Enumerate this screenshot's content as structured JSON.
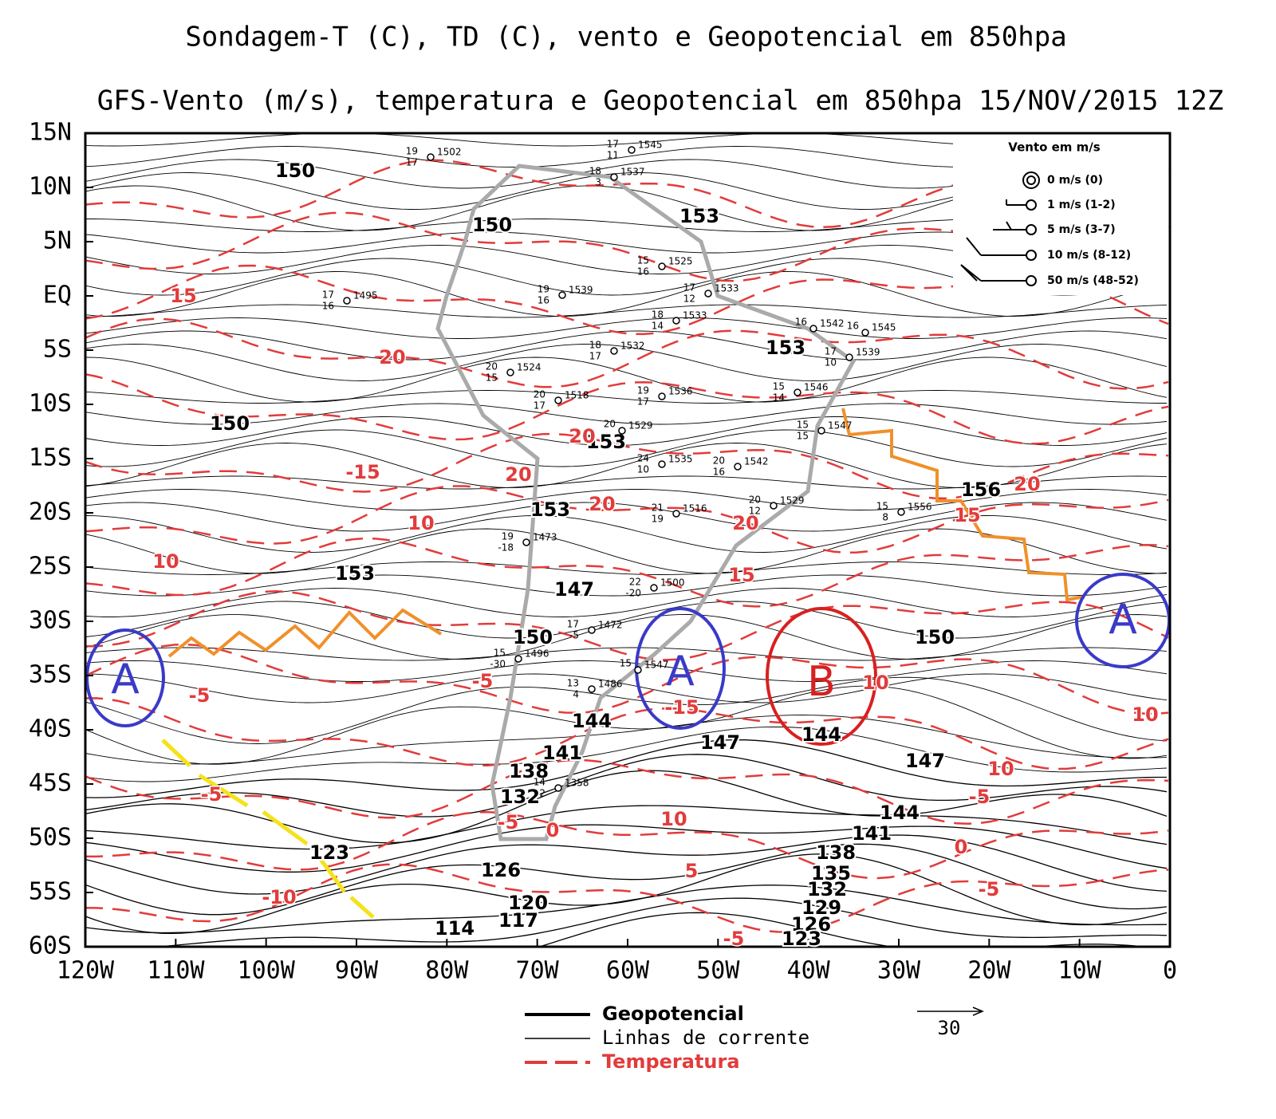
{
  "header": {
    "title": "Sondagem-T (C), TD (C), vento e Geopotencial em 850hpa",
    "subtitle": "GFS-Vento (m/s), temperatura e Geopotencial em 850hpa 15/NOV/2015 12Z"
  },
  "axes": {
    "lat_labels": [
      "15N",
      "10N",
      "5N",
      "EQ",
      "5S",
      "10S",
      "15S",
      "20S",
      "25S",
      "30S",
      "35S",
      "40S",
      "45S",
      "50S",
      "55S",
      "60S"
    ],
    "lon_labels": [
      "120W",
      "110W",
      "100W",
      "90W",
      "80W",
      "70W",
      "60W",
      "50W",
      "40W",
      "30W",
      "20W",
      "10W",
      "0"
    ]
  },
  "geopotential_labels": [
    "150",
    "153",
    "150",
    "150",
    "153",
    "153",
    "153",
    "147",
    "150",
    "144",
    "147",
    "141",
    "138",
    "132",
    "126",
    "123",
    "120",
    "117",
    "114",
    "144",
    "147",
    "150",
    "156",
    "153",
    "144",
    "141",
    "138",
    "135",
    "132",
    "129",
    "126",
    "123"
  ],
  "temperature_labels": [
    "15",
    "20",
    "-15",
    "10",
    "10",
    "20",
    "20",
    "20",
    "20",
    "15",
    "-5",
    "-5",
    "-15",
    "10",
    "10",
    "10",
    "-5",
    "20",
    "15",
    "-5",
    "10",
    "0",
    "-5",
    "0",
    "-5",
    "5",
    "-10",
    "-5"
  ],
  "stations": [
    [
      "19",
      "17",
      "1502"
    ],
    [
      "17",
      "11",
      "1545"
    ],
    [
      "18",
      "3",
      "1537"
    ],
    [
      "17",
      "16",
      "1495"
    ],
    [
      "19",
      "16",
      "1539"
    ],
    [
      "15",
      "16",
      "1525"
    ],
    [
      "17",
      "12",
      "1533"
    ],
    [
      "18",
      "14",
      "1533"
    ],
    [
      "18",
      "17",
      "1532"
    ],
    [
      "20",
      "15",
      "1524"
    ],
    [
      "20",
      "17",
      "1518"
    ],
    [
      "19",
      "17",
      "1536"
    ],
    [
      "20",
      "1529"
    ],
    [
      "24",
      "10",
      "1535"
    ],
    [
      "20",
      "16",
      "1542"
    ],
    [
      "16",
      "1542"
    ],
    [
      "16",
      "1545"
    ],
    [
      "17",
      "10",
      "1539"
    ],
    [
      "15",
      "14",
      "1546"
    ],
    [
      "15",
      "15",
      "1547"
    ],
    [
      "15",
      "8",
      "1556"
    ],
    [
      "21",
      "19",
      "1516"
    ],
    [
      "20",
      "12",
      "1529"
    ],
    [
      "19",
      "-18",
      "1473"
    ],
    [
      "22",
      "-20",
      "1500"
    ],
    [
      "17",
      "-5",
      "1472"
    ],
    [
      "15",
      "-30",
      "1496"
    ],
    [
      "15",
      "1547"
    ],
    [
      "13",
      "4",
      "1486"
    ],
    [
      "14",
      "2",
      "1358"
    ]
  ],
  "pressure_centers": [
    "A",
    "A",
    "A",
    "B"
  ],
  "wind_legend": {
    "title": "Vento em m/s",
    "items": [
      "0 m/s (0)",
      "1 m/s (1-2)",
      "5 m/s (3-7)",
      "10 m/s (8-12)",
      "50 m/s (48-52)"
    ]
  },
  "legend": {
    "items": [
      "Geopotencial",
      "Linhas de corrente",
      "Temperatura"
    ],
    "vector_scale": "30"
  }
}
